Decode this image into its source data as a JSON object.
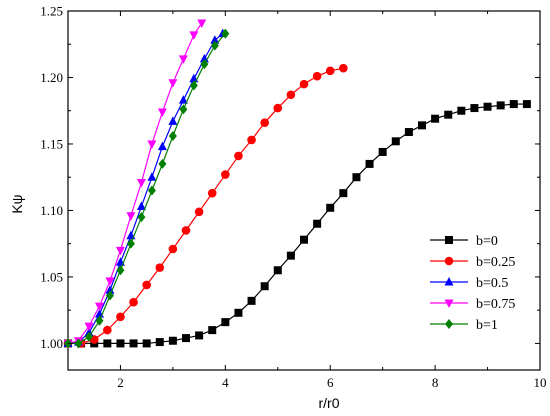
{
  "chart_data": {
    "type": "line",
    "title": "",
    "xlabel": "r/r0",
    "ylabel": "Kψ",
    "xlim": [
      1,
      10
    ],
    "ylim": [
      0.98,
      1.25
    ],
    "x_ticks": [
      2,
      4,
      6,
      8,
      10
    ],
    "x_tick_labels": [
      "2",
      "4",
      "6",
      "8",
      "10"
    ],
    "y_ticks": [
      1.0,
      1.05,
      1.1,
      1.15,
      1.2,
      1.25
    ],
    "y_tick_labels": [
      "1.00",
      "1.05",
      "1.10",
      "1.15",
      "1.20",
      "1.25"
    ],
    "grid": false,
    "legend_position": "bottom-right",
    "series": [
      {
        "name": "b=0",
        "color": "#000000",
        "marker": "square",
        "points": [
          [
            1.0,
            1.0
          ],
          [
            1.25,
            1.0
          ],
          [
            1.5,
            1.0
          ],
          [
            1.75,
            1.0
          ],
          [
            2.0,
            1.0
          ],
          [
            2.25,
            1.0
          ],
          [
            2.5,
            1.0
          ],
          [
            2.75,
            1.001
          ],
          [
            3.0,
            1.002
          ],
          [
            3.25,
            1.004
          ],
          [
            3.5,
            1.006
          ],
          [
            3.75,
            1.01
          ],
          [
            4.0,
            1.016
          ],
          [
            4.25,
            1.023
          ],
          [
            4.5,
            1.032
          ],
          [
            4.75,
            1.043
          ],
          [
            5.0,
            1.055
          ],
          [
            5.25,
            1.066
          ],
          [
            5.5,
            1.078
          ],
          [
            5.75,
            1.09
          ],
          [
            6.0,
            1.102
          ],
          [
            6.25,
            1.113
          ],
          [
            6.5,
            1.125
          ],
          [
            6.75,
            1.135
          ],
          [
            7.0,
            1.144
          ],
          [
            7.25,
            1.152
          ],
          [
            7.5,
            1.159
          ],
          [
            7.75,
            1.164
          ],
          [
            8.0,
            1.169
          ],
          [
            8.25,
            1.172
          ],
          [
            8.5,
            1.175
          ],
          [
            8.75,
            1.177
          ],
          [
            9.0,
            1.178
          ],
          [
            9.25,
            1.179
          ],
          [
            9.5,
            1.18
          ],
          [
            9.75,
            1.18
          ]
        ]
      },
      {
        "name": "b=0.25",
        "color": "#ff0000",
        "marker": "circle",
        "points": [
          [
            1.0,
            1.0
          ],
          [
            1.25,
            1.0
          ],
          [
            1.5,
            1.003
          ],
          [
            1.75,
            1.01
          ],
          [
            2.0,
            1.02
          ],
          [
            2.25,
            1.031
          ],
          [
            2.5,
            1.044
          ],
          [
            2.75,
            1.057
          ],
          [
            3.0,
            1.071
          ],
          [
            3.25,
            1.085
          ],
          [
            3.5,
            1.099
          ],
          [
            3.75,
            1.113
          ],
          [
            4.0,
            1.127
          ],
          [
            4.25,
            1.141
          ],
          [
            4.5,
            1.153
          ],
          [
            4.75,
            1.166
          ],
          [
            5.0,
            1.177
          ],
          [
            5.25,
            1.187
          ],
          [
            5.5,
            1.195
          ],
          [
            5.75,
            1.201
          ],
          [
            6.0,
            1.205
          ],
          [
            6.25,
            1.207
          ]
        ]
      },
      {
        "name": "b=0.5",
        "color": "#0000ff",
        "marker": "triangle-up",
        "points": [
          [
            1.0,
            1.0
          ],
          [
            1.2,
            1.001
          ],
          [
            1.4,
            1.008
          ],
          [
            1.6,
            1.022
          ],
          [
            1.8,
            1.04
          ],
          [
            2.0,
            1.061
          ],
          [
            2.2,
            1.081
          ],
          [
            2.4,
            1.103
          ],
          [
            2.6,
            1.125
          ],
          [
            2.8,
            1.148
          ],
          [
            3.0,
            1.167
          ],
          [
            3.2,
            1.183
          ],
          [
            3.4,
            1.199
          ],
          [
            3.6,
            1.214
          ],
          [
            3.8,
            1.228
          ],
          [
            3.95,
            1.233
          ]
        ]
      },
      {
        "name": "b=0.75",
        "color": "#ff00ff",
        "marker": "triangle-down",
        "points": [
          [
            1.0,
            1.0
          ],
          [
            1.2,
            1.002
          ],
          [
            1.4,
            1.013
          ],
          [
            1.6,
            1.028
          ],
          [
            1.8,
            1.047
          ],
          [
            2.0,
            1.07
          ],
          [
            2.2,
            1.096
          ],
          [
            2.4,
            1.121
          ],
          [
            2.6,
            1.15
          ],
          [
            2.8,
            1.174
          ],
          [
            3.0,
            1.196
          ],
          [
            3.2,
            1.214
          ],
          [
            3.4,
            1.232
          ],
          [
            3.55,
            1.241
          ]
        ]
      },
      {
        "name": "b=1",
        "color": "#008000",
        "marker": "diamond",
        "points": [
          [
            1.0,
            1.0
          ],
          [
            1.2,
            1.0
          ],
          [
            1.4,
            1.005
          ],
          [
            1.6,
            1.017
          ],
          [
            1.8,
            1.036
          ],
          [
            2.0,
            1.055
          ],
          [
            2.2,
            1.075
          ],
          [
            2.4,
            1.095
          ],
          [
            2.6,
            1.115
          ],
          [
            2.8,
            1.135
          ],
          [
            3.0,
            1.156
          ],
          [
            3.2,
            1.176
          ],
          [
            3.4,
            1.194
          ],
          [
            3.6,
            1.21
          ],
          [
            3.8,
            1.224
          ],
          [
            4.0,
            1.233
          ]
        ]
      }
    ]
  }
}
